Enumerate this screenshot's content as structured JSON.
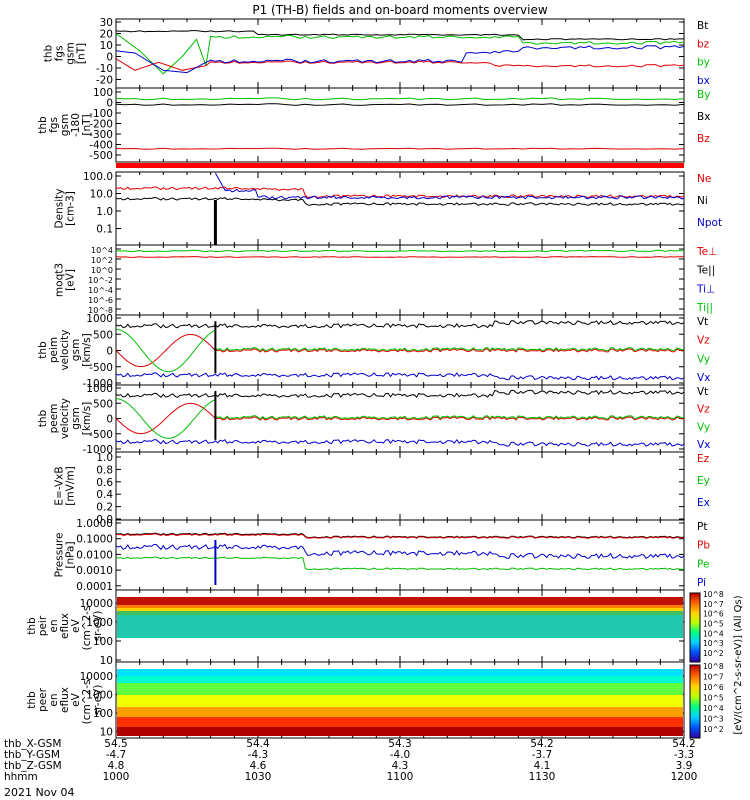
{
  "title": "P1 (TH-B) fields and on-board moments overview",
  "date": "2021 Nov 04",
  "time_ticks": [
    "1000",
    "1030",
    "1100",
    "1130",
    "1200"
  ],
  "ephemeris": [
    {
      "label": "thb_X-GSM",
      "values": [
        "54.5",
        "54.4",
        "54.3",
        "54.2",
        "54.2"
      ]
    },
    {
      "label": "thb_Y-GSM",
      "values": [
        "-4.7",
        "-4.3",
        "-4.0",
        "-3.7",
        "-3.3"
      ]
    },
    {
      "label": "thb_Z-GSM",
      "values": [
        "4.8",
        "4.6",
        "4.3",
        "4.1",
        "3.9"
      ]
    },
    {
      "label": "hhmm",
      "values": [
        "1000",
        "1030",
        "1100",
        "1130",
        "1200"
      ]
    }
  ],
  "colorbar": {
    "label": "[eV/(cm^2-s-sr-eV)] (All Qs)",
    "ticks": [
      "10^2",
      "10^3",
      "10^4",
      "10^5",
      "10^6",
      "10^7",
      "10^8"
    ],
    "ticks2": [
      "10^2",
      "10^3",
      "10^4",
      "10^5",
      "10^6",
      "10^7",
      "10^8"
    ]
  },
  "colors": {
    "black": "#000000",
    "red": "#e00000",
    "green": "#00c000",
    "blue": "#0000d0"
  },
  "panels": [
    {
      "ylabel": [
        "thb",
        "fgs",
        "gsm",
        "[nT]"
      ],
      "ticks": [
        "30",
        "20",
        "10",
        "0",
        "-10",
        "-20"
      ],
      "legend": [
        [
          "Bt",
          "#000000"
        ],
        [
          "bz",
          "#e00000"
        ],
        [
          "by",
          "#00c000"
        ],
        [
          "bx",
          "#0000d0"
        ]
      ]
    },
    {
      "ylabel": [
        "thb",
        "fgs",
        "gsm",
        "-180",
        "[nT]"
      ],
      "ticks": [
        "100",
        "0",
        "-100",
        "-200",
        "-300",
        "-400",
        "-500"
      ],
      "legend": [
        [
          "By",
          "#00c000"
        ],
        [
          "Bx",
          "#000000"
        ],
        [
          "Bz",
          "#e00000"
        ]
      ]
    },
    {
      "ylabel": [
        "Density",
        "[cm-3]"
      ],
      "ticks": [
        "100.0",
        "10.0",
        "1.0",
        "0.1"
      ],
      "legend": [
        [
          "Ne",
          "#e00000"
        ],
        [
          "Ni",
          "#000000"
        ],
        [
          "Npot",
          "#0000d0"
        ]
      ]
    },
    {
      "ylabel": [
        "moqt3",
        "[eV]"
      ],
      "ticks": [
        "10^4",
        "10^2",
        "10^0",
        "10^-2",
        "10^-4",
        "10^-6",
        "10^-8"
      ],
      "legend": [
        [
          "Te⊥",
          "#e00000"
        ],
        [
          "Te||",
          "#000000"
        ],
        [
          "Ti⊥",
          "#0000d0"
        ],
        [
          "Ti||",
          "#00c000"
        ]
      ]
    },
    {
      "ylabel": [
        "thb",
        "peim",
        "velocity",
        "gsm",
        "[km/s]"
      ],
      "ticks": [
        "1000",
        "500",
        "0",
        "-500",
        "-1000"
      ],
      "legend": [
        [
          "Vt",
          "#000000"
        ],
        [
          "Vz",
          "#e00000"
        ],
        [
          "Vy",
          "#00c000"
        ],
        [
          "Vx",
          "#0000d0"
        ]
      ]
    },
    {
      "ylabel": [
        "thb",
        "peem",
        "velocity",
        "gsm",
        "[km/s]"
      ],
      "ticks": [
        "1000",
        "500",
        "0",
        "-500",
        "-1000"
      ],
      "legend": [
        [
          "Vt",
          "#000000"
        ],
        [
          "Vz",
          "#e00000"
        ],
        [
          "Vy",
          "#00c000"
        ],
        [
          "Vx",
          "#0000d0"
        ]
      ]
    },
    {
      "ylabel": [
        "E=-VxB",
        "[mV/m]"
      ],
      "ticks": [
        "1.0",
        "0.8",
        "0.6",
        "0.4",
        "0.2",
        "0.0"
      ],
      "legend": [
        [
          "Ez",
          "#e00000"
        ],
        [
          "Ey",
          "#00c000"
        ],
        [
          "Ex",
          "#0000d0"
        ]
      ]
    },
    {
      "ylabel": [
        "Pressure",
        "[nPa]"
      ],
      "ticks": [
        "1.0000",
        "0.1000",
        "0.0100",
        "0.0010",
        "0.0001"
      ],
      "legend": [
        [
          "Pt",
          "#000000"
        ],
        [
          "Pb",
          "#e00000"
        ],
        [
          "Pe",
          "#00c000"
        ],
        [
          "Pi",
          "#0000d0"
        ]
      ]
    },
    {
      "ylabel": [
        "thb",
        "peir",
        "en",
        "eflux",
        "eV",
        "(cm^2-s-",
        "sr-eV)"
      ],
      "ticks": [
        "10000",
        "1000",
        "100",
        "10"
      ],
      "legend": []
    },
    {
      "ylabel": [
        "thb",
        "peer",
        "en",
        "eflux",
        "eV",
        "(cm^2-s-",
        "sr-eV)"
      ],
      "ticks": [
        "10000",
        "1000",
        "100",
        "10"
      ],
      "legend": []
    }
  ],
  "chart_data": [
    {
      "type": "line",
      "title": "P1 (TH-B) fields and on-board moments overview",
      "x": [
        "10:00",
        "10:10",
        "10:20",
        "10:22",
        "10:40",
        "11:00",
        "11:20",
        "11:26",
        "11:40",
        "12:00"
      ],
      "ylabel": "thb fgs gsm [nT]",
      "ylim": [
        -25,
        30
      ],
      "series": [
        {
          "name": "Bt",
          "values": [
            24,
            24,
            22,
            21,
            20,
            20,
            19,
            15,
            15,
            15
          ]
        },
        {
          "name": "bz",
          "values": [
            -2,
            -8,
            -6,
            -4,
            -4,
            -5,
            -6,
            -8,
            -7,
            -6
          ]
        },
        {
          "name": "by",
          "values": [
            20,
            -15,
            20,
            19,
            18,
            17,
            16,
            12,
            12,
            10
          ]
        },
        {
          "name": "bx",
          "values": [
            -1,
            -15,
            -5,
            -5,
            -4,
            -3,
            -2,
            5,
            10,
            10
          ]
        }
      ]
    },
    {
      "type": "line",
      "x": [
        "10:00",
        "12:00"
      ],
      "ylabel": "thb fgs gsm -180 [nT]",
      "ylim": [
        -550,
        110
      ],
      "series": [
        {
          "name": "By",
          "values": [
            40,
            40
          ]
        },
        {
          "name": "Bx",
          "values": [
            -20,
            -20
          ]
        },
        {
          "name": "Bz",
          "values": [
            -440,
            -440
          ]
        }
      ]
    },
    {
      "type": "line",
      "x": [
        "10:00",
        "10:20",
        "10:40",
        "11:00",
        "11:20",
        "11:40",
        "12:00"
      ],
      "ylabel": "Density [cm-3]",
      "ylim": [
        0.01,
        300
      ],
      "yscale": "log",
      "series": [
        {
          "name": "Ne",
          "values": [
            15,
            20,
            18,
            8,
            7,
            6,
            6
          ]
        },
        {
          "name": "Ni",
          "values": [
            4,
            5,
            5,
            3,
            2.5,
            2.5,
            2.5
          ]
        },
        {
          "name": "Npot",
          "values": [
            null,
            300,
            15,
            7,
            6,
            5,
            4
          ]
        }
      ]
    },
    {
      "type": "line",
      "x": [
        "10:00",
        "12:00"
      ],
      "ylabel": "moqt3 [eV]",
      "yscale": "log",
      "series": [
        {
          "name": "Te⊥",
          "values": [
            1,
            1
          ]
        },
        {
          "name": "Ti||",
          "values": [
            10,
            10
          ]
        }
      ]
    },
    {
      "type": "line",
      "x": [
        "10:00",
        "10:05",
        "10:10",
        "10:15",
        "10:20",
        "10:21",
        "10:40",
        "11:00",
        "11:20",
        "11:30",
        "11:40",
        "12:00"
      ],
      "ylabel": "thb peim velocity gsm [km/s]",
      "ylim": [
        -1000,
        1000
      ],
      "series": [
        {
          "name": "Vt",
          "values": [
            750,
            700,
            720,
            750,
            750,
            800,
            750,
            760,
            750,
            880,
            850,
            850
          ]
        },
        {
          "name": "Vz",
          "values": [
            0,
            -350,
            -500,
            200,
            500,
            0,
            0,
            0,
            0,
            0,
            0,
            0
          ]
        },
        {
          "name": "Vy",
          "values": [
            650,
            0,
            -400,
            -600,
            0,
            50,
            50,
            40,
            50,
            50,
            40,
            50
          ]
        },
        {
          "name": "Vx",
          "values": [
            -750,
            -750,
            -750,
            -750,
            -750,
            -750,
            -750,
            -760,
            -760,
            -850,
            -820,
            -830
          ]
        }
      ]
    },
    {
      "type": "line",
      "x": [
        "10:00",
        "10:05",
        "10:10",
        "10:15",
        "10:20",
        "10:21",
        "10:40",
        "11:00",
        "11:20",
        "11:30",
        "11:40",
        "12:00"
      ],
      "ylabel": "thb peem velocity gsm [km/s]",
      "ylim": [
        -1000,
        1000
      ],
      "series": [
        {
          "name": "Vt",
          "values": [
            750,
            700,
            720,
            750,
            750,
            700,
            650,
            650,
            650,
            850,
            850,
            850
          ]
        },
        {
          "name": "Vz",
          "values": [
            0,
            -350,
            -500,
            200,
            500,
            0,
            0,
            0,
            0,
            0,
            0,
            0
          ]
        },
        {
          "name": "Vy",
          "values": [
            650,
            0,
            -400,
            -600,
            0,
            0,
            50,
            40,
            0,
            0,
            40,
            50
          ]
        },
        {
          "name": "Vx",
          "values": [
            -700,
            -800,
            -750,
            -750,
            -750,
            -750,
            -750,
            -750,
            -750,
            -850,
            -850,
            -830
          ]
        }
      ]
    },
    {
      "type": "line",
      "x": [
        "10:00",
        "12:00"
      ],
      "ylabel": "E=-VxB [mV/m]",
      "ylim": [
        0.0,
        1.0
      ],
      "series": []
    },
    {
      "type": "line",
      "x": [
        "10:00",
        "10:20",
        "10:40",
        "11:00",
        "11:20",
        "11:30",
        "11:40",
        "12:00"
      ],
      "ylabel": "Pressure [nPa]",
      "yscale": "log",
      "series": [
        {
          "name": "Pt",
          "values": [
            0.2,
            0.22,
            0.2,
            0.16,
            0.15,
            0.12,
            0.12,
            0.11
          ]
        },
        {
          "name": "Pb",
          "values": [
            0.2,
            0.2,
            0.19,
            0.16,
            0.15,
            0.11,
            0.11,
            0.11
          ]
        },
        {
          "name": "Pe",
          "values": [
            0.006,
            0.007,
            0.005,
            0.0012,
            0.0012,
            0.0012,
            0.001,
            0.001
          ]
        },
        {
          "name": "Pi",
          "values": [
            0.04,
            0.04,
            0.03,
            0.012,
            0.012,
            0.006,
            0.007,
            0.007
          ]
        }
      ]
    },
    {
      "type": "heatmap",
      "ylabel": "thb peir en eflux eV (cm^2-s-sr-eV)",
      "ylim": [
        10,
        10000
      ],
      "yscale": "log",
      "bands": [
        [
          "8000-13000",
          "dark red"
        ],
        [
          "3500-8000",
          "orange"
        ],
        [
          "2000-3500",
          "yellow"
        ],
        [
          "1000-2000",
          "green"
        ],
        [
          "120-1000",
          "cyan speckled"
        ],
        [
          "5-120",
          "white"
        ]
      ]
    },
    {
      "type": "heatmap",
      "ylabel": "thb peer en eflux eV (cm^2-s-sr-eV)",
      "ylim": [
        5,
        13000
      ],
      "yscale": "log",
      "bands": [
        [
          "10-20",
          "dark red"
        ],
        [
          "20-120",
          "red-orange"
        ],
        [
          "120-500",
          "yellow"
        ],
        [
          "500-2000",
          "green"
        ],
        [
          "2000-6000",
          "cyan"
        ],
        [
          "6000-13000",
          "white"
        ]
      ]
    }
  ]
}
